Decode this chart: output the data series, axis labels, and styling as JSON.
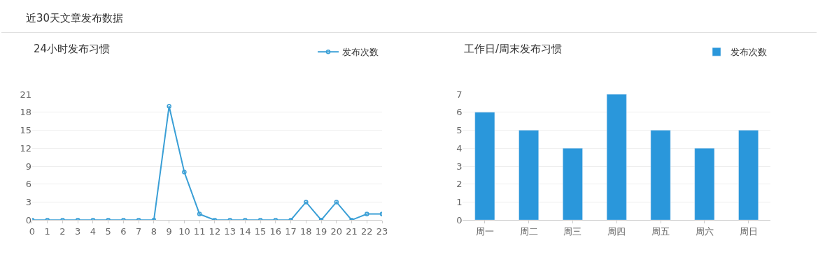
{
  "chart_data": [
    {
      "type": "line",
      "title": "24小时发布习惯",
      "annotations": [
        "近30天文章发布数据"
      ],
      "x": [
        0,
        1,
        2,
        3,
        4,
        5,
        6,
        7,
        8,
        9,
        10,
        11,
        12,
        13,
        14,
        15,
        16,
        17,
        18,
        19,
        20,
        21,
        22,
        23
      ],
      "series": [
        {
          "name": "发布次数",
          "color": "#3a9fd6",
          "values": [
            0,
            0,
            0,
            0,
            0,
            0,
            0,
            0,
            0,
            19,
            8,
            1,
            0,
            0,
            0,
            0,
            0,
            0,
            3,
            0,
            3,
            0,
            1,
            1
          ]
        }
      ],
      "xlim": [
        0,
        23
      ],
      "xticks": [
        0,
        1,
        2,
        3,
        4,
        5,
        6,
        7,
        8,
        9,
        10,
        11,
        12,
        13,
        14,
        15,
        16,
        17,
        18,
        19,
        20,
        21,
        22,
        23
      ],
      "ylim": [
        0,
        21
      ],
      "yticks": [
        0,
        3,
        6,
        9,
        12,
        15,
        18,
        21
      ],
      "grid": "y",
      "legend": "top right",
      "marker": "circle",
      "line_style": "solid"
    },
    {
      "type": "bar",
      "title": "工作日/周末发布习惯",
      "categories": [
        "周一",
        "周二",
        "周三",
        "周四",
        "周五",
        "周六",
        "周日"
      ],
      "series": [
        {
          "name": "发布次数",
          "color": "#2a97db",
          "values": [
            6,
            5,
            4,
            7,
            5,
            4,
            5
          ]
        }
      ],
      "ylim": [
        0,
        7
      ],
      "yticks": [
        0,
        1,
        2,
        3,
        4,
        5,
        6,
        7
      ],
      "grid": "y",
      "legend": "top right"
    }
  ]
}
